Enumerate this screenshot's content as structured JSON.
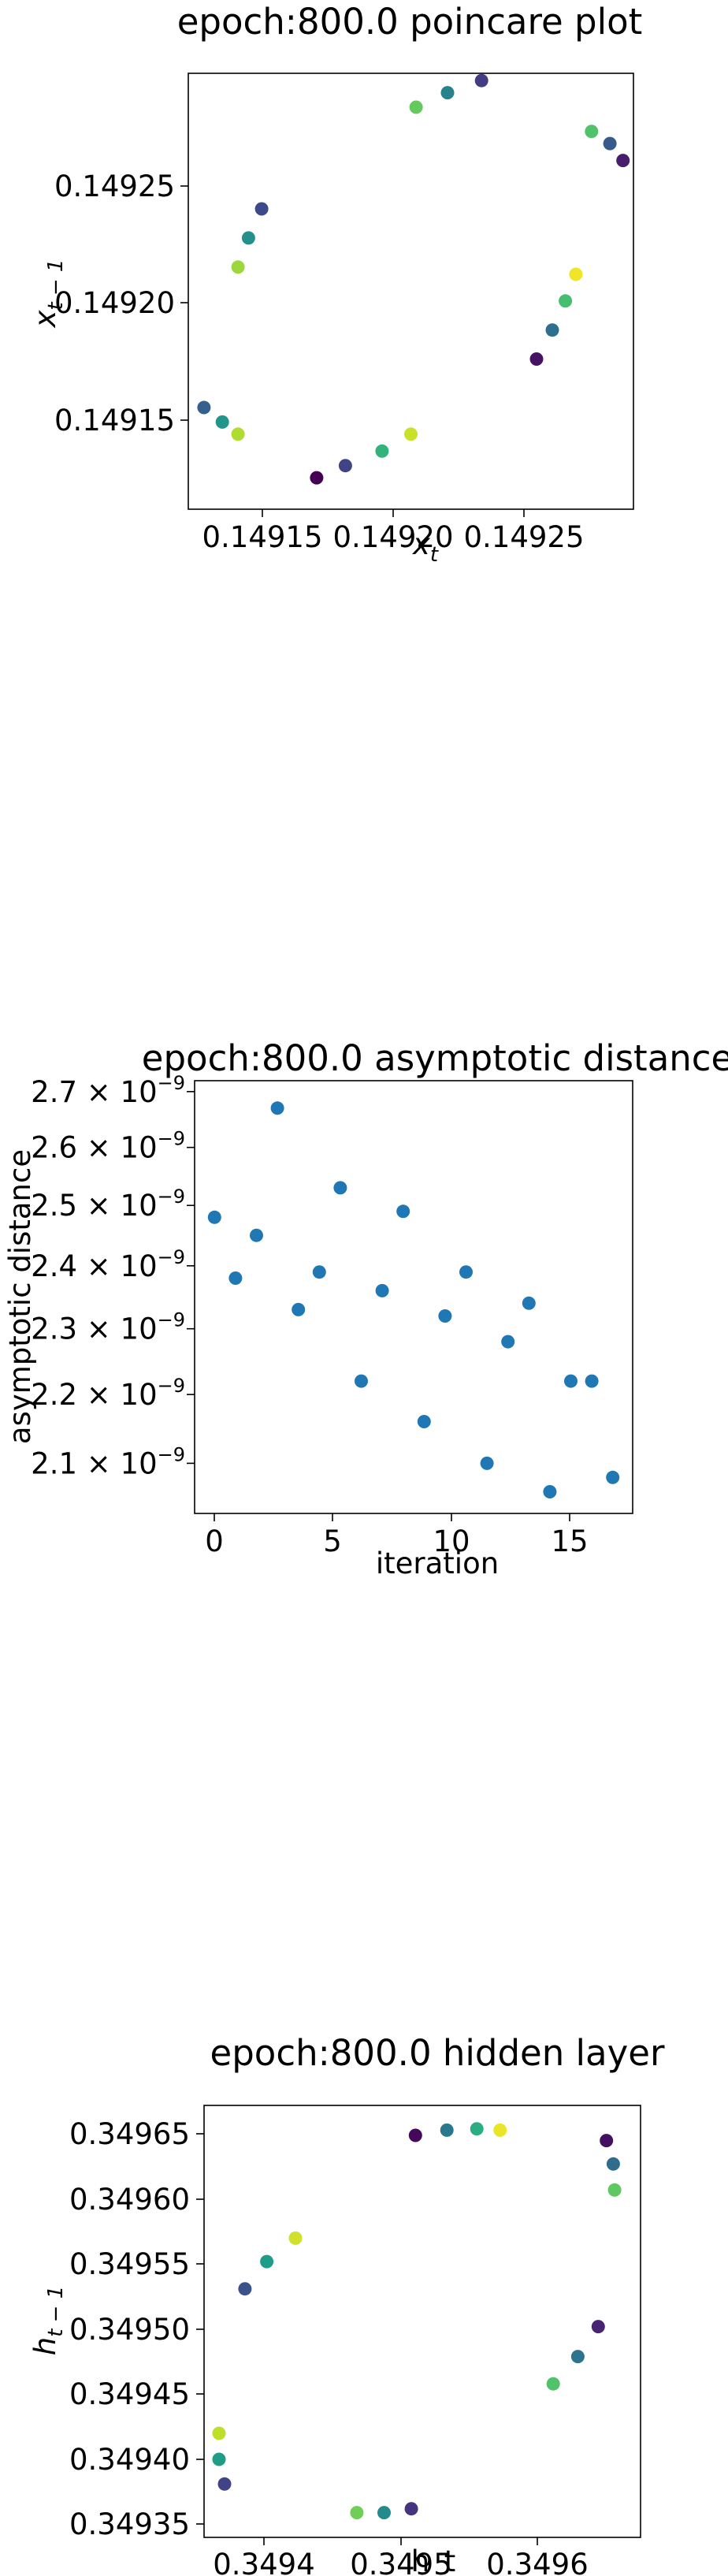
{
  "charts": [
    {
      "title": "epoch:800.0 poincare plot",
      "xlabel_main": "x",
      "xlabel_sub": "t",
      "ylabel_main": "x",
      "ylabel_sub": "t − 1",
      "xticks": [
        "0.14915",
        "0.14920",
        "0.14925"
      ],
      "yticks": [
        "0.14915",
        "0.14920",
        "0.14925"
      ]
    },
    {
      "title": "epoch:800.0 asymptotic distance",
      "xlabel": "iteration",
      "ylabel": "asymptotic distance",
      "xticks": [
        "0",
        "5",
        "10",
        "15"
      ],
      "ytick_mantissas": [
        "2.1",
        "2.2",
        "2.3",
        "2.4",
        "2.5",
        "2.6",
        "2.7"
      ],
      "ytick_times": "×",
      "ytick_base": "10",
      "ytick_exponent": "−9"
    },
    {
      "title": "epoch:800.0 hidden layer",
      "xlabel": "h_t",
      "ylabel_main": "h",
      "ylabel_sub": "t − 1",
      "xticks": [
        "0.3494",
        "0.3495",
        "0.3496"
      ],
      "yticks": [
        "0.34935",
        "0.34940",
        "0.34945",
        "0.34950",
        "0.34955",
        "0.34960",
        "0.34965"
      ]
    }
  ],
  "chart_data": [
    {
      "type": "scatter",
      "title": "epoch:800.0 poincare plot",
      "xlabel": "x_t",
      "ylabel": "x_{t-1}",
      "xlim": [
        0.149123,
        0.149293
      ],
      "ylim": [
        0.149112,
        0.149292
      ],
      "xticks": [
        0.14915,
        0.1492,
        0.14925
      ],
      "yticks": [
        0.14915,
        0.1492,
        0.14925
      ],
      "colormap": "viridis",
      "marker_color": "viridis",
      "points": [
        {
          "x": 0.149172,
          "y": 0.149125,
          "c": 0.0
        },
        {
          "x": 0.149183,
          "y": 0.14913,
          "c": 0.2
        },
        {
          "x": 0.149197,
          "y": 0.149136,
          "c": 0.65
        },
        {
          "x": 0.149208,
          "y": 0.149143,
          "c": 0.92
        },
        {
          "x": 0.149142,
          "y": 0.149143,
          "c": 0.88
        },
        {
          "x": 0.149136,
          "y": 0.149148,
          "c": 0.52
        },
        {
          "x": 0.149129,
          "y": 0.149154,
          "c": 0.3
        },
        {
          "x": 0.149256,
          "y": 0.149174,
          "c": 0.05
        },
        {
          "x": 0.149262,
          "y": 0.149186,
          "c": 0.36
        },
        {
          "x": 0.149267,
          "y": 0.149198,
          "c": 0.7
        },
        {
          "x": 0.149271,
          "y": 0.149209,
          "c": 0.98
        },
        {
          "x": 0.149142,
          "y": 0.149212,
          "c": 0.85
        },
        {
          "x": 0.149146,
          "y": 0.149224,
          "c": 0.5
        },
        {
          "x": 0.149151,
          "y": 0.149236,
          "c": 0.22
        },
        {
          "x": 0.149289,
          "y": 0.149256,
          "c": 0.08
        },
        {
          "x": 0.149284,
          "y": 0.149263,
          "c": 0.28
        },
        {
          "x": 0.149277,
          "y": 0.149268,
          "c": 0.72
        },
        {
          "x": 0.14921,
          "y": 0.149278,
          "c": 0.76
        },
        {
          "x": 0.149222,
          "y": 0.149284,
          "c": 0.45
        },
        {
          "x": 0.149235,
          "y": 0.149289,
          "c": 0.18
        }
      ]
    },
    {
      "type": "scatter",
      "title": "epoch:800.0 asymptotic distance",
      "xlabel": "iteration",
      "ylabel": "asymptotic distance",
      "yscale": "log",
      "xlim": [
        -0.95,
        19.95
      ],
      "ylim": [
        2.03e-09,
        2.72e-09
      ],
      "xticks": [
        0,
        5,
        10,
        15
      ],
      "yticks": [
        2.1e-09,
        2.2e-09,
        2.3e-09,
        2.4e-09,
        2.5e-09,
        2.6e-09,
        2.7e-09
      ],
      "color": "#1f77b4",
      "x": [
        0,
        1,
        2,
        3,
        4,
        5,
        6,
        7,
        8,
        9,
        10,
        11,
        12,
        13,
        14,
        15,
        16,
        17,
        18,
        19
      ],
      "y": [
        2.48e-09,
        2.38e-09,
        2.45e-09,
        2.67e-09,
        2.33e-09,
        2.39e-09,
        2.53e-09,
        2.22e-09,
        2.36e-09,
        2.49e-09,
        2.16e-09,
        2.32e-09,
        2.39e-09,
        2.1e-09,
        2.28e-09,
        2.34e-09,
        2.06e-09,
        2.22e-09,
        2.22e-09,
        2.08e-09
      ]
    },
    {
      "type": "scatter",
      "title": "epoch:800.0 hidden layer",
      "xlabel": "h_t",
      "ylabel": "h_{t-1}",
      "xlim": [
        0.349355,
        0.349675
      ],
      "ylim": [
        0.349345,
        0.349677
      ],
      "xticks": [
        0.3494,
        0.3495,
        0.3496
      ],
      "yticks": [
        0.34935,
        0.3494,
        0.34945,
        0.3495,
        0.34955,
        0.3496,
        0.34965
      ],
      "colormap": "viridis",
      "marker_color": "viridis",
      "points": [
        {
          "x": 0.34951,
          "y": 0.349654,
          "c": 0.02
        },
        {
          "x": 0.349533,
          "y": 0.349658,
          "c": 0.4
        },
        {
          "x": 0.349555,
          "y": 0.349659,
          "c": 0.62
        },
        {
          "x": 0.349572,
          "y": 0.349658,
          "c": 0.97
        },
        {
          "x": 0.34965,
          "y": 0.34965,
          "c": 0.04
        },
        {
          "x": 0.349655,
          "y": 0.349632,
          "c": 0.35
        },
        {
          "x": 0.349656,
          "y": 0.349612,
          "c": 0.75
        },
        {
          "x": 0.349422,
          "y": 0.349575,
          "c": 0.93
        },
        {
          "x": 0.349401,
          "y": 0.349557,
          "c": 0.55
        },
        {
          "x": 0.349385,
          "y": 0.349536,
          "c": 0.25
        },
        {
          "x": 0.349644,
          "y": 0.349507,
          "c": 0.1
        },
        {
          "x": 0.349629,
          "y": 0.349484,
          "c": 0.38
        },
        {
          "x": 0.349611,
          "y": 0.349463,
          "c": 0.72
        },
        {
          "x": 0.349366,
          "y": 0.349425,
          "c": 0.9
        },
        {
          "x": 0.349366,
          "y": 0.349405,
          "c": 0.55
        },
        {
          "x": 0.34937,
          "y": 0.349386,
          "c": 0.2
        },
        {
          "x": 0.349467,
          "y": 0.349364,
          "c": 0.78
        },
        {
          "x": 0.349487,
          "y": 0.349364,
          "c": 0.48
        },
        {
          "x": 0.349507,
          "y": 0.349367,
          "c": 0.15
        }
      ]
    }
  ]
}
